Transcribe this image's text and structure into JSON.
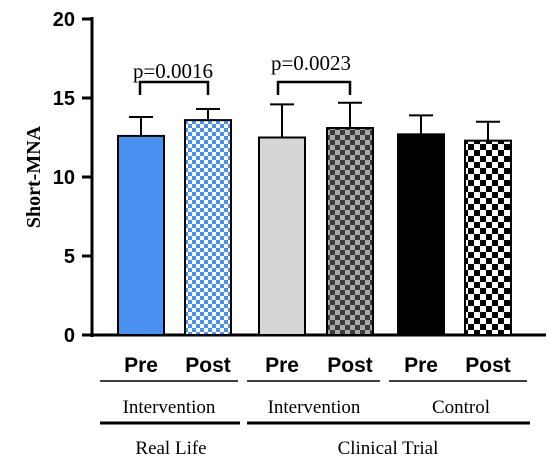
{
  "chart_data": {
    "type": "bar",
    "ylabel": "Short-MNA",
    "ylim": [
      0,
      20
    ],
    "yticks": [
      "0",
      "5",
      "10",
      "15",
      "20"
    ],
    "grid": false,
    "categories": [
      "Pre",
      "Post",
      "Pre",
      "Post",
      "Pre",
      "Post"
    ],
    "values": [
      12.6,
      13.6,
      12.5,
      13.1,
      12.7,
      12.3
    ],
    "errors": [
      1.2,
      0.7,
      2.1,
      1.6,
      1.2,
      1.2
    ],
    "fills": [
      "solid",
      "checker",
      "solid",
      "checker",
      "solid",
      "checker"
    ],
    "colors": {
      "real_life": "#4a90f0",
      "real_life_light": "#ffffff",
      "clinical": "#d6d6d6",
      "clinical_check_dark": "#3a3a3a",
      "clinical_check_light": "#a8a8a8",
      "control": "#000000",
      "control_light": "#ffffff"
    },
    "bar_colors": [
      "real_life",
      "real_life",
      "clinical",
      "clinical",
      "control",
      "control"
    ],
    "group_labels": [
      "Intervention",
      "Intervention",
      "Control"
    ],
    "study_labels": [
      "Real Life",
      "Clinical Trial"
    ],
    "annotations": [
      {
        "text": "p=0.0016",
        "from": 0,
        "to": 1
      },
      {
        "text": "p=0.0023",
        "from": 2,
        "to": 3
      }
    ]
  }
}
